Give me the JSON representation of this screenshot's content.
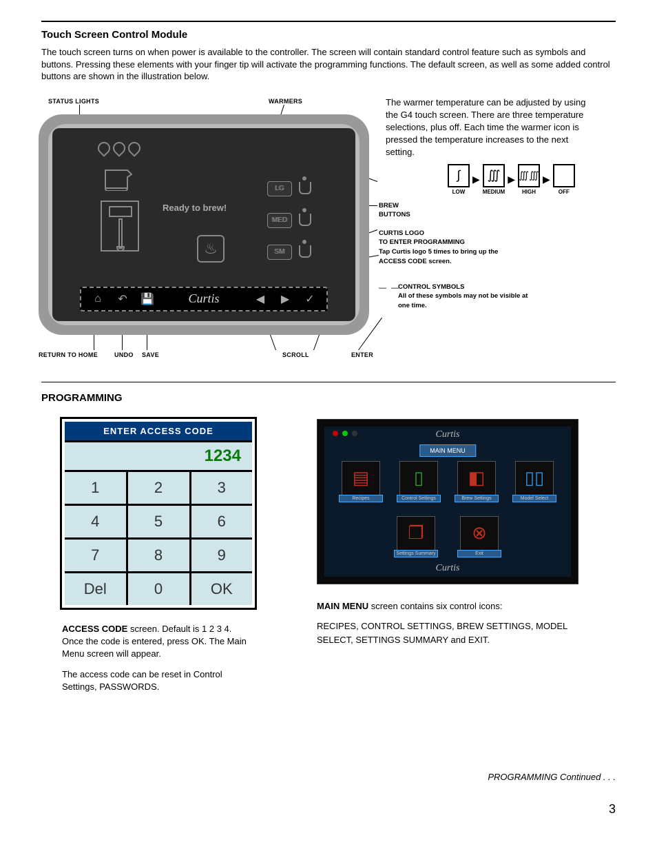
{
  "section1": {
    "title": "Touch Screen Control Module",
    "intro": "The touch screen turns on when power is available to the controller. The screen will contain standard control feature such as symbols and buttons. Pressing these elements with your finger tip will activate the programming functions. The default screen, as well as some added control buttons are shown in the illustration below."
  },
  "callouts": {
    "status_lights": "STATUS LIGHTS",
    "warmers": "WARMERS",
    "brew_buttons_1": "BREW",
    "brew_buttons_2": "BUTTONS",
    "curtis_logo": "CURTIS LOGO",
    "enter_prog": "TO ENTER PROGRAMMING",
    "enter_prog_desc": "Tap Curtis logo 5 times to bring up the ACCESS CODE screen.",
    "control_symbols_1": "CONTROL SYMBOLS",
    "control_symbols_2": "All of these symbols may not be visible at one time.",
    "return_home": "RETURN TO HOME",
    "undo": "UNDO",
    "save": "SAVE",
    "scroll": "SCROLL",
    "enter": "ENTER"
  },
  "right_text": "The warmer temperature can be adjusted by using the G4 touch screen.\nThere are three temperature selections, plus off. Each time the warmer icon is pressed the temperature increases to the next setting.",
  "warmer_levels": {
    "low": "LOW",
    "medium": "MEDIUM",
    "high": "HIGH",
    "off": "OFF"
  },
  "device_screen": {
    "ready": "Ready to brew!",
    "sizes": {
      "lg": "LG",
      "med": "MED",
      "sm": "SM"
    },
    "brand": "Curtis"
  },
  "programming": {
    "title": "PROGRAMMING",
    "keypad": {
      "header": "ENTER ACCESS CODE",
      "display": "1234",
      "keys": [
        [
          "1",
          "2",
          "3"
        ],
        [
          "4",
          "5",
          "6"
        ],
        [
          "7",
          "8",
          "9"
        ],
        [
          "Del",
          "0",
          "OK"
        ]
      ]
    },
    "keypad_desc_1a": "ACCESS CODE",
    "keypad_desc_1b": " screen. Default is 1 2 3 4. Once the code is entered, press OK. The Main Menu screen will appear.",
    "keypad_desc_2": "The access code can be reset in Control Settings, PASSWORDS.",
    "menu": {
      "brand": "Curtis",
      "title": "MAIN MENU",
      "items": [
        {
          "label": "Recipes",
          "color": "#c03020",
          "icon": "▤"
        },
        {
          "label": "Control Settings",
          "color": "#28a028",
          "icon": "▯"
        },
        {
          "label": "Brew Settings",
          "color": "#c03020",
          "icon": "◧"
        },
        {
          "label": "Model Select",
          "color": "#3090e0",
          "icon": "▯▯"
        }
      ],
      "items2": [
        {
          "label": "Settings Summary",
          "color": "#c03020",
          "icon": "❐"
        },
        {
          "label": "Exit",
          "color": "#c03020",
          "icon": "⊗"
        }
      ],
      "desc_1a": "MAIN MENU",
      "desc_1b": " screen contains six control icons:",
      "desc_2": "RECIPES, CONTROL SETTINGS, BREW SETTINGS, MODEL SELECT, SETTINGS SUMMARY and EXIT."
    }
  },
  "footer": {
    "cont": "PROGRAMMING Continued . . .",
    "page": "3"
  },
  "colors": {
    "hdr_bg": "#003a7a",
    "cell_bg": "#cfe5ea",
    "disp_fg": "#0a7a0a",
    "menu_bg": "#0b1a2a",
    "menu_bar": "#2a5a8a"
  }
}
